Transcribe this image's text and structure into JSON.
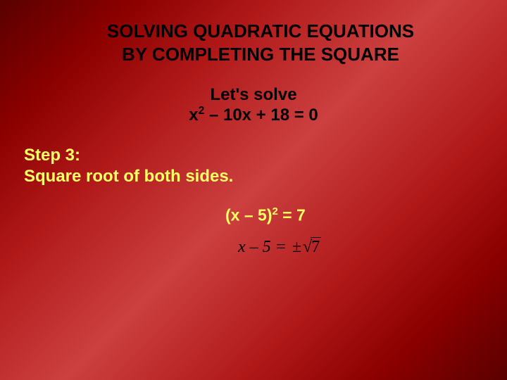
{
  "title_line1": "SOLVING QUADRATIC EQUATIONS",
  "title_line2": "BY COMPLETING THE SQUARE",
  "subtitle": "Let's solve",
  "equation_x": "x",
  "equation_exp": "2",
  "equation_rest": " – 10x + 18 = 0",
  "step_label": "Step 3:",
  "step_text": "Square root of both sides.",
  "work1_lhs": "(x – 5)",
  "work1_exp": "2",
  "work1_rhs": " = 7",
  "work2_x": "x",
  "work2_mid": " – 5 = ",
  "work2_pm": "±",
  "work2_rad": "7",
  "colors": {
    "text_black": "#000000",
    "text_yellow": "#ffff66",
    "bg_gradient": [
      "#5a0000",
      "#8b0000",
      "#b01818",
      "#cc4040"
    ]
  },
  "fonts": {
    "main": "Arial",
    "serif": "Times New Roman",
    "title_size_pt": 20,
    "body_size_pt": 18
  }
}
